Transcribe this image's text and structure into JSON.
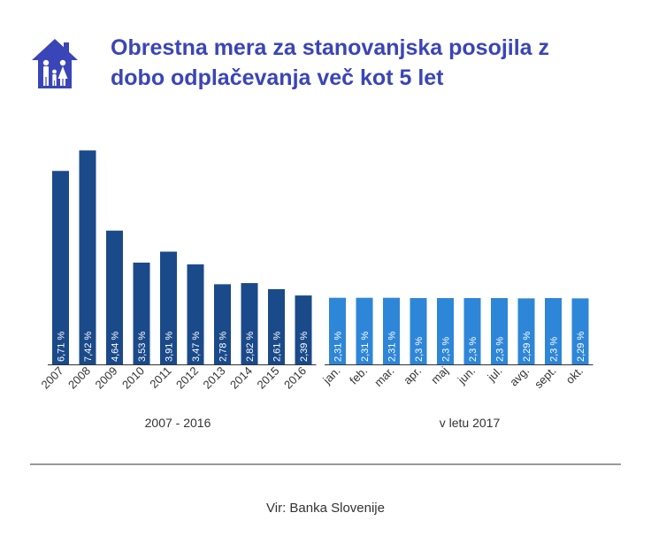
{
  "title": {
    "line1": "Obrestna mera za stanovanjska posojila z",
    "line2": "dobo odplačevanja več kot 5 let"
  },
  "icon": "house-family-icon",
  "colors": {
    "title": "#3a45b8",
    "icon": "#3a45b8",
    "bars_2007_2016": "#1a4a8a",
    "bars_2017": "#2e86d8",
    "axis": "#333333",
    "divider": "#9a9a9a"
  },
  "source": "Vir: Banka Slovenije",
  "chart_data": [
    {
      "type": "bar",
      "xlabel": "2007 - 2016",
      "categories": [
        "2007",
        "2008",
        "2009",
        "2010",
        "2011",
        "2012",
        "2013",
        "2014",
        "2015",
        "2016"
      ],
      "values": [
        6.71,
        7.42,
        4.64,
        3.53,
        3.91,
        3.47,
        2.78,
        2.82,
        2.61,
        2.39
      ],
      "labels": [
        "6,71 %",
        "7,42 %",
        "4,64 %",
        "3,53 %",
        "3,91 %",
        "3,47 %",
        "2,78 %",
        "2,82 %",
        "2,61 %",
        "2,39 %"
      ],
      "ylim": [
        0,
        8
      ],
      "grid": false,
      "legend": "none"
    },
    {
      "type": "bar",
      "xlabel": "v letu 2017",
      "categories": [
        "jan.",
        "feb.",
        "mar.",
        "apr.",
        "maj",
        "jun.",
        "jul.",
        "avg.",
        "sept.",
        "okt."
      ],
      "values": [
        2.31,
        2.31,
        2.31,
        2.3,
        2.3,
        2.3,
        2.3,
        2.29,
        2.3,
        2.29
      ],
      "labels": [
        "2,31 %",
        "2,31 %",
        "2,31 %",
        "2,3 %",
        "2,3 %",
        "2,3 %",
        "2,3 %",
        "2,29 %",
        "2,3 %",
        "2,29 %"
      ],
      "ylim": [
        0,
        8
      ],
      "grid": false,
      "legend": "none"
    }
  ]
}
